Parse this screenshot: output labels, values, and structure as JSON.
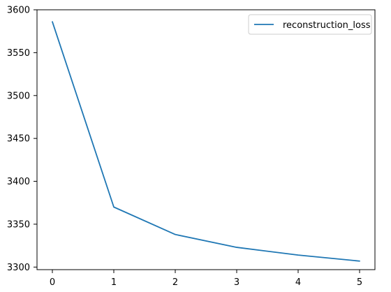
{
  "chart_data": {
    "type": "line",
    "title": "",
    "xlabel": "",
    "ylabel": "",
    "x": [
      0,
      1,
      2,
      3,
      4,
      5
    ],
    "xticks": [
      "0",
      "1",
      "2",
      "3",
      "4",
      "5"
    ],
    "yticks": [
      "3300",
      "3350",
      "3400",
      "3450",
      "3500",
      "3550",
      "3600"
    ],
    "series": [
      {
        "name": "reconstruction_loss",
        "color": "#1f77b4",
        "values": [
          3586,
          3370,
          3338,
          3323,
          3314,
          3307
        ]
      }
    ],
    "xlim": [
      -0.25,
      5.25
    ],
    "ylim": [
      3297,
      3600
    ],
    "grid": false,
    "legend_position": "top-right"
  }
}
